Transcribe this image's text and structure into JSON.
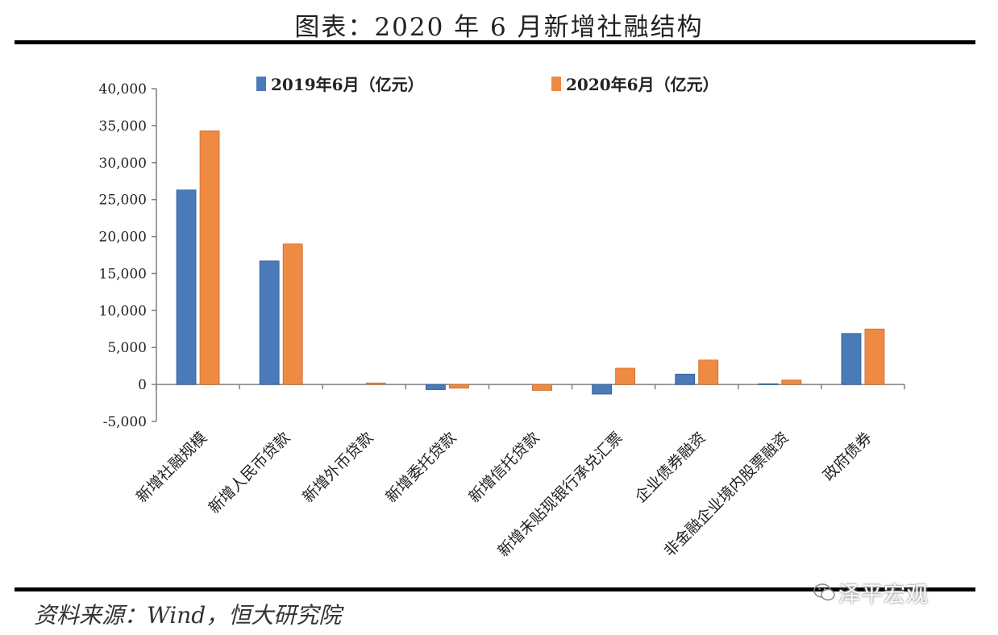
{
  "page": {
    "title": "图表：2020 年 6 月新增社融结构",
    "source": "资料来源：Wind，恒大研究院",
    "watermark": "泽平宏观"
  },
  "colors": {
    "series1": "#4a7ab8",
    "series2": "#ef8a43",
    "axis": "#7f7f7f"
  },
  "chart_data": {
    "type": "bar",
    "title": "图表：2020 年 6 月新增社融结构",
    "xlabel": "",
    "ylabel": "",
    "ylim": [
      -5000,
      40000
    ],
    "yticks": [
      -5000,
      0,
      5000,
      10000,
      15000,
      20000,
      25000,
      30000,
      35000,
      40000
    ],
    "ytick_labels": [
      "-5,000",
      "0",
      "5,000",
      "10,000",
      "15,000",
      "20,000",
      "25,000",
      "30,000",
      "35,000",
      "40,000"
    ],
    "categories": [
      "新增社融规模",
      "新增人民币贷款",
      "新增外币贷款",
      "新增委托贷款",
      "新增信托贷款",
      "新增未贴现银行承兑汇票",
      "企业债券融资",
      "非金融企业境内股票融资",
      "政府债券"
    ],
    "series": [
      {
        "name": "2019年6月（亿元）",
        "values": [
          26300,
          16700,
          0,
          -700,
          0,
          -1300,
          1400,
          100,
          6900
        ]
      },
      {
        "name": "2020年6月（亿元）",
        "values": [
          34300,
          19000,
          200,
          -500,
          -800,
          2200,
          3300,
          600,
          7500
        ]
      }
    ],
    "legend": "top",
    "grid": false
  }
}
